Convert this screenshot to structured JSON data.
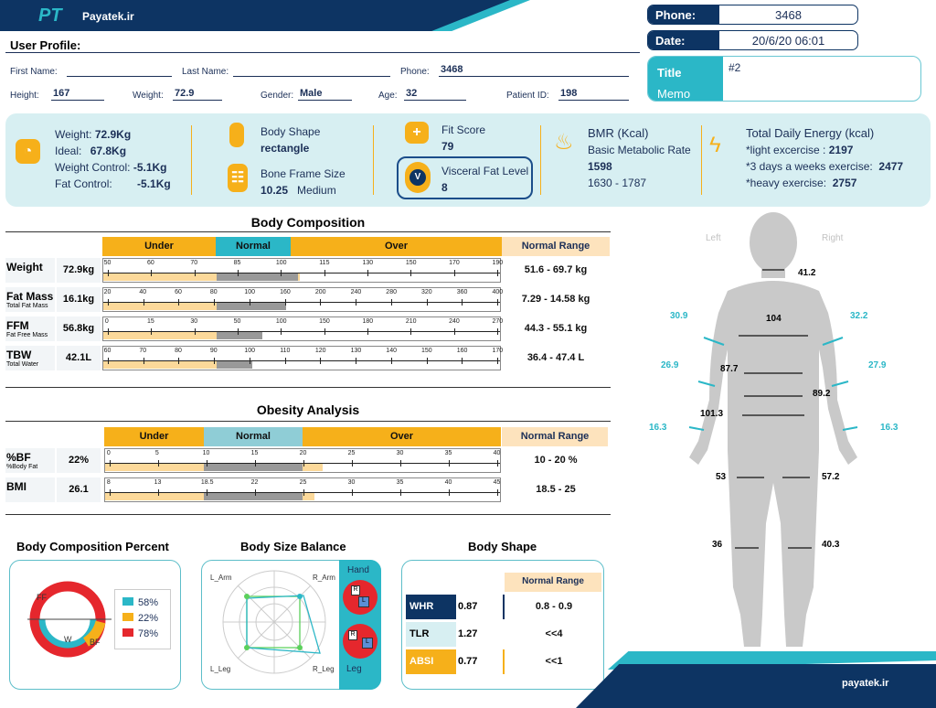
{
  "header": {
    "logo": "PT",
    "brand": "Payatek.ir",
    "phone_label": "Phone:",
    "phone": "3468",
    "date_label": "Date:",
    "date": "20/6/20 06:01",
    "title_label": "Title",
    "memo_label": "Memo",
    "title_value": "#2"
  },
  "profile": {
    "section": "User Profile:",
    "first_name_label": "First Name:",
    "first_name": "",
    "last_name_label": "Last Name:",
    "last_name": "",
    "phone_label": "Phone:",
    "phone": "3468",
    "height_label": "Height:",
    "height": "167",
    "weight_label": "Weight:",
    "weight": "72.9",
    "gender_label": "Gender:",
    "gender": "Male",
    "age_label": "Age:",
    "age": "32",
    "pid_label": "Patient ID:",
    "pid": "198"
  },
  "summary": {
    "weight_label": "Weight:",
    "weight": "72.9Kg",
    "ideal_label": "Ideal:",
    "ideal": "67.8Kg",
    "wc_label": "Weight Control:",
    "wc": "-5.1Kg",
    "fc_label": "Fat Control:",
    "fc": "-5.1Kg",
    "shape_label": "Body Shape",
    "shape": "rectangle",
    "frame_label": "Bone Frame Size",
    "frame": "10.25",
    "frame_size": "Medium",
    "fit_label": "Fit Score",
    "fit": "79",
    "visc_label": "Visceral Fat Level",
    "visc": "8",
    "visc_icon": "V",
    "bmr_label": "BMR (Kcal)",
    "bmr_sub": "Basic Metabolic Rate",
    "bmr": "1598",
    "bmr_range": "1630 - 1787",
    "tde_label": "Total Daily Energy (kcal)",
    "light_label": "*light excercise :",
    "light": "2197",
    "three_label": "*3 days a weeks exercise:",
    "three": "2477",
    "heavy_label": "*heavy exercise:",
    "heavy": "2757"
  },
  "body_comp": {
    "title": "Body Composition",
    "under": "Under",
    "normal": "Normal",
    "over": "Over",
    "normal_range": "Normal Range",
    "rows": [
      {
        "name": "Weight",
        "sub": "",
        "value": "72.9kg",
        "ticks": [
          "50",
          "60",
          "70",
          "85",
          "100",
          "115",
          "130",
          "150",
          "170",
          "190"
        ],
        "range": "51.6 - 69.7 kg",
        "fill": 0.495
      },
      {
        "name": "Fat Mass",
        "sub": "Total Fat Mass",
        "value": "16.1kg",
        "ticks": [
          "20",
          "40",
          "60",
          "80",
          "100",
          "160",
          "200",
          "240",
          "280",
          "320",
          "360",
          "400"
        ],
        "range": "7.29 - 14.58 kg",
        "fill": 0.46
      },
      {
        "name": "FFM",
        "sub": "Fat Free Mass",
        "value": "56.8kg",
        "ticks": [
          "0",
          "15",
          "30",
          "50",
          "100",
          "150",
          "180",
          "210",
          "240",
          "270"
        ],
        "range": "44.3 - 55.1 kg",
        "fill": 0.4
      },
      {
        "name": "TBW",
        "sub": "Total Water",
        "value": "42.1L",
        "ticks": [
          "60",
          "70",
          "80",
          "90",
          "100",
          "110",
          "120",
          "130",
          "140",
          "150",
          "160",
          "170"
        ],
        "range": "36.4 - 47.4 L",
        "fill": 0.375
      }
    ]
  },
  "obesity": {
    "title": "Obesity Analysis",
    "under": "Under",
    "normal": "Normal",
    "over": "Over",
    "normal_range": "Normal Range",
    "rows": [
      {
        "name": "%BF",
        "sub": "%Body Fat",
        "value": "22%",
        "ticks": [
          "0",
          "5",
          "10",
          "15",
          "20",
          "25",
          "30",
          "35",
          "40"
        ],
        "range": "10 - 20 %",
        "fill": 0.55
      },
      {
        "name": "BMI",
        "sub": "",
        "value": "26.1",
        "ticks": [
          "8",
          "13",
          "18.5",
          "22",
          "25",
          "30",
          "35",
          "40",
          "45"
        ],
        "range": "18.5 - 25",
        "fill": 0.53
      }
    ]
  },
  "bcp": {
    "title": "Body Composition Percent",
    "ff": "FF",
    "w": "W",
    "bf": "BF",
    "legend": [
      {
        "label": "58%",
        "color": "#2bb7c7"
      },
      {
        "label": "22%",
        "color": "#f6b01a"
      },
      {
        "label": "78%",
        "color": "#e5272d"
      }
    ]
  },
  "bsb": {
    "title": "Body Size Balance",
    "l_arm": "L_Arm",
    "r_arm": "R_Arm",
    "l_leg": "L_Leg",
    "r_leg": "R_Leg",
    "hand": "Hand",
    "leg": "Leg",
    "r": "R",
    "l": "L"
  },
  "shape": {
    "title": "Body Shape",
    "normal_range": "Normal Range",
    "rows": [
      {
        "k": "WHR",
        "v": "0.87",
        "r": "0.8 - 0.9",
        "c": "#0d3463"
      },
      {
        "k": "TLR",
        "v": "1.27",
        "r": "<<4",
        "c": "#d7eff2"
      },
      {
        "k": "ABSI",
        "v": "0.77",
        "r": "<<1",
        "c": "#f6b01a"
      }
    ]
  },
  "figure": {
    "left": "Left",
    "right": "Right",
    "neck": "41.2",
    "chest": "104",
    "l_arm": "30.9",
    "r_arm": "32.2",
    "l_fore": "26.9",
    "r_fore": "27.9",
    "waist": "87.7",
    "abd": "89.2",
    "hip": "101.3",
    "l_wrist": "16.3",
    "r_wrist": "16.3",
    "l_thigh": "53",
    "r_thigh": "57.2",
    "l_calf": "36",
    "r_calf": "40.3"
  },
  "footer": {
    "site": "payatek.ir"
  }
}
